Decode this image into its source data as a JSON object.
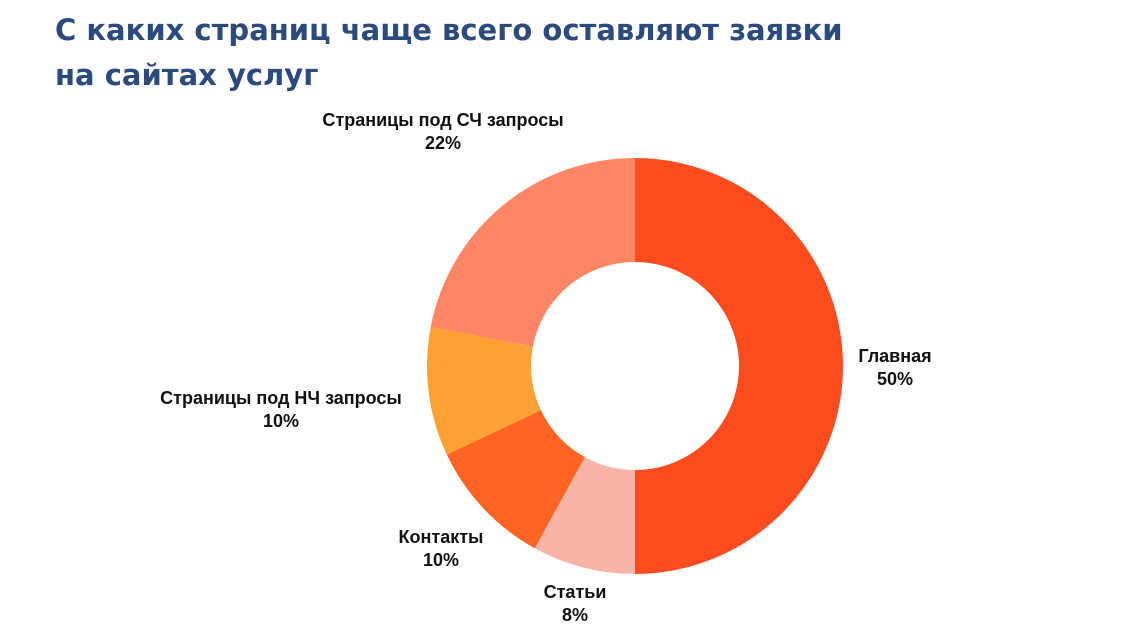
{
  "title": {
    "line1": "С каких страниц чаще всего оставляют заявки",
    "line2": "на сайтах услуг"
  },
  "chart_data": {
    "type": "pie",
    "variant": "donut",
    "title": "С каких страниц чаще всего оставляют заявки на сайтах услуг",
    "slices": [
      {
        "label": "Главная",
        "value": 50,
        "display": "50%",
        "color": "#ff4c1f"
      },
      {
        "label": "Статьи",
        "value": 8,
        "display": "8%",
        "color": "#f8b4a6"
      },
      {
        "label": "Контакты",
        "value": 10,
        "display": "10%",
        "color": "#ff6423"
      },
      {
        "label": "Страницы под НЧ запросы",
        "value": 10,
        "display": "10%",
        "color": "#ffa035"
      },
      {
        "label": "Страницы под СЧ запросы",
        "value": 22,
        "display": "22%",
        "color": "#ff8665"
      }
    ],
    "start_angle": "12 o'clock",
    "direction": "clockwise",
    "legend": "none",
    "labels": "outside"
  }
}
